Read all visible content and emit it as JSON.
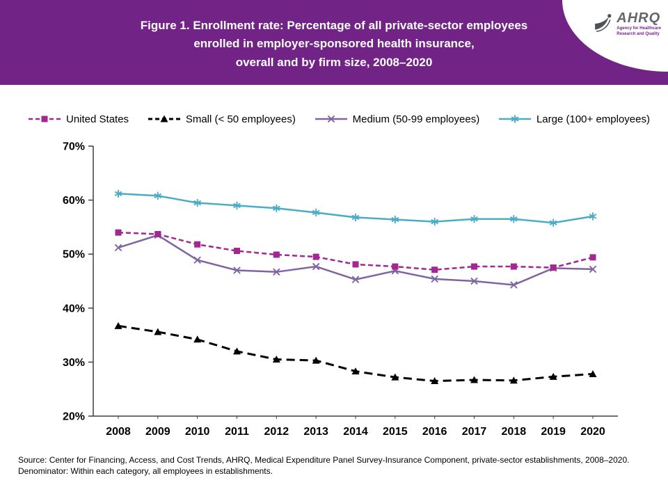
{
  "header": {
    "title_lines": [
      "Figure 1. Enrollment rate: Percentage of all private-sector employees",
      "enrolled in employer-sponsored health insurance,",
      "overall and by firm size, 2008–2020"
    ],
    "logo": {
      "acronym": "AHRQ",
      "tagline_line1": "Agency for Healthcare",
      "tagline_line2": "Research and Quality"
    }
  },
  "chart_data": {
    "type": "line",
    "title": "",
    "xlabel": "",
    "ylabel": "",
    "categories": [
      2008,
      2009,
      2010,
      2011,
      2012,
      2013,
      2014,
      2015,
      2016,
      2017,
      2018,
      2019,
      2020
    ],
    "ylim": [
      20,
      70
    ],
    "yticks": [
      20,
      30,
      40,
      50,
      60,
      70
    ],
    "ytick_suffix": "%",
    "grid": false,
    "legend_position": "top",
    "axis_color": "#3f3f3f",
    "series": [
      {
        "name": "United States",
        "color": "#a32693",
        "dash": "7,4",
        "line_width": 2.5,
        "marker": "square",
        "values": [
          54.0,
          53.7,
          51.8,
          50.6,
          49.9,
          49.5,
          48.1,
          47.7,
          47.1,
          47.7,
          47.7,
          47.5,
          49.4
        ]
      },
      {
        "name": "Small (< 50 employees)",
        "color": "#000000",
        "dash": "12,7",
        "line_width": 3,
        "marker": "triangle",
        "values": [
          36.7,
          35.6,
          34.2,
          32.0,
          30.5,
          30.3,
          28.3,
          27.2,
          26.5,
          26.7,
          26.6,
          27.3,
          27.8
        ]
      },
      {
        "name": "Medium (50-99 employees)",
        "color": "#8064a2",
        "dash": "",
        "line_width": 2.5,
        "marker": "x",
        "values": [
          51.2,
          53.5,
          48.9,
          47.0,
          46.7,
          47.7,
          45.3,
          46.9,
          45.4,
          45.0,
          44.3,
          47.4,
          47.2
        ]
      },
      {
        "name": "Large (100+ employees)",
        "color": "#4bacc6",
        "dash": "",
        "line_width": 2.5,
        "marker": "asterisk",
        "values": [
          61.2,
          60.8,
          59.5,
          59.0,
          58.5,
          57.7,
          56.8,
          56.4,
          56.0,
          56.5,
          56.5,
          55.8,
          57.0
        ]
      }
    ]
  },
  "footer": {
    "source": "Source: Center for Financing, Access, and Cost Trends, AHRQ, Medical Expenditure Panel Survey-Insurance Component, private-sector establishments, 2008–2020.",
    "denominator": "Denominator: Within each category, all employees in establishments."
  }
}
